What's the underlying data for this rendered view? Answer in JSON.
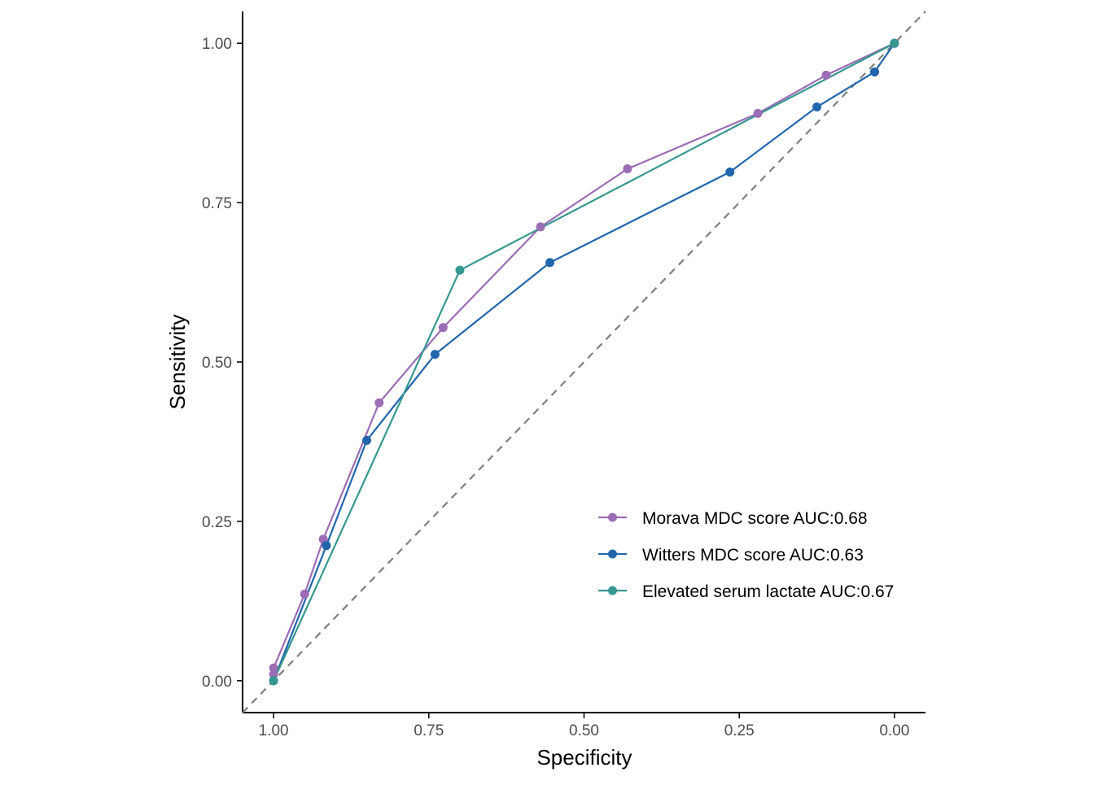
{
  "chart_data": {
    "type": "line",
    "title": "",
    "xlabel": "Specificity",
    "ylabel": "Sensitivity",
    "xlim": [
      1.05,
      -0.05
    ],
    "ylim": [
      -0.05,
      1.05
    ],
    "x_reversed": true,
    "x_ticks": [
      1.0,
      0.75,
      0.5,
      0.25,
      0.0
    ],
    "x_tick_labels": [
      "1.00",
      "0.75",
      "0.50",
      "0.25",
      "0.00"
    ],
    "y_ticks": [
      0.0,
      0.25,
      0.5,
      0.75,
      1.0
    ],
    "y_tick_labels": [
      "0.00",
      "0.25",
      "0.50",
      "0.75",
      "1.00"
    ],
    "grid": false,
    "legend_position": "bottom-right inside",
    "reference_line": {
      "style": "dashed",
      "color": "#7f7f7f",
      "from": [
        1.0,
        0.0
      ],
      "to": [
        0.0,
        1.0
      ]
    },
    "series": [
      {
        "name": "Morava MDC score AUC:0.68",
        "color": "#9b6db5",
        "x": [
          1.0,
          1.0,
          0.95,
          0.92,
          0.83,
          0.727,
          0.57,
          0.43,
          0.22,
          0.11,
          0.0
        ],
        "y": [
          0.01,
          0.02,
          0.136,
          0.222,
          0.436,
          0.554,
          0.712,
          0.803,
          0.89,
          0.95,
          1.0
        ]
      },
      {
        "name": "Witters MDC score AUC:0.63",
        "color": "#2166ac",
        "x": [
          1.0,
          0.915,
          0.85,
          0.74,
          0.555,
          0.265,
          0.125,
          0.032,
          0.0
        ],
        "y": [
          0.0,
          0.212,
          0.377,
          0.512,
          0.656,
          0.798,
          0.9,
          0.955,
          1.0
        ]
      },
      {
        "name": "Elevated serum lactate AUC:0.67",
        "color": "#35978f",
        "x": [
          1.0,
          0.7,
          0.0
        ],
        "y": [
          0.0,
          0.644,
          1.0
        ]
      }
    ]
  }
}
